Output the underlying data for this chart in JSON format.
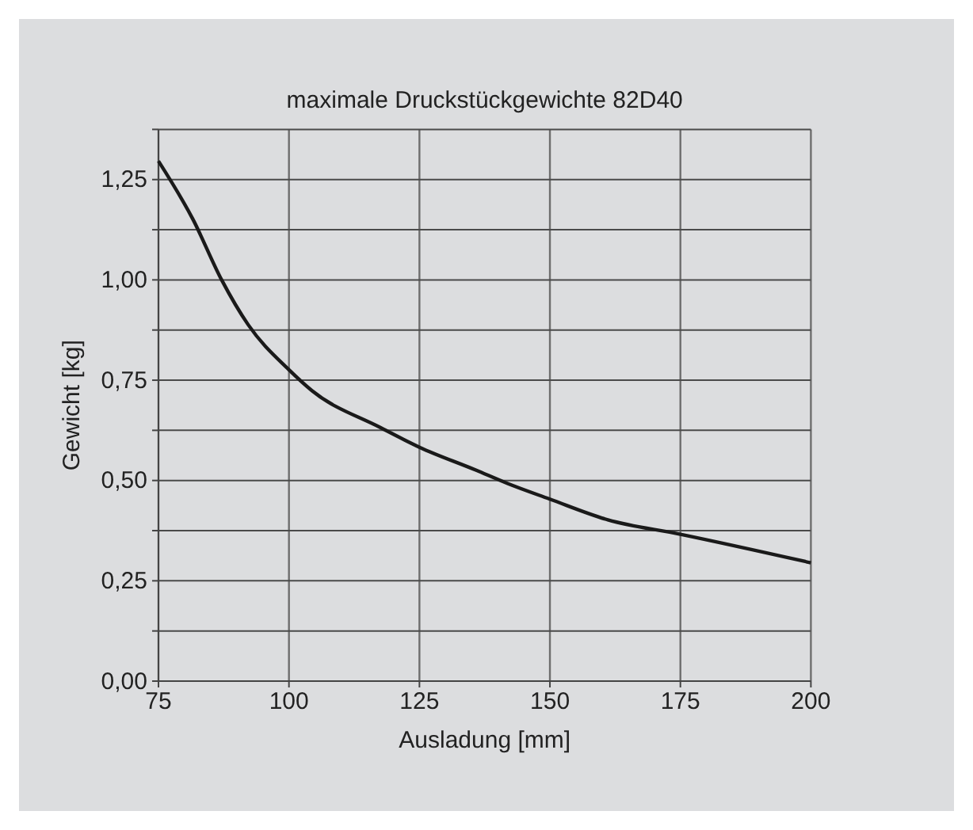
{
  "chart_data": {
    "type": "line",
    "title": "maximale Druckstückgewichte 82D40",
    "xlabel": "Ausladung [mm]",
    "ylabel": "Gewicht [kg]",
    "x": [
      75,
      81.6,
      87.1,
      92.2,
      100,
      104.4,
      117.5,
      125,
      135.8,
      141.8,
      149.9,
      161.1,
      175,
      200
    ],
    "series": [
      {
        "color": "#1a1a1a",
        "values": [
          1.296,
          1.151,
          1.0,
          0.888,
          0.776,
          0.724,
          0.632,
          0.583,
          0.526,
          0.493,
          0.454,
          0.402,
          0.366,
          0.295
        ]
      }
    ],
    "xlim": [
      75,
      200
    ],
    "xticks": [
      75,
      100,
      125,
      150,
      175,
      200
    ],
    "ylim": [
      0,
      1.375
    ],
    "yticks": [
      {
        "value": 0,
        "label": "0,00"
      },
      {
        "value": 0.125,
        "label": null
      },
      {
        "value": 0.25,
        "label": "0,25"
      },
      {
        "value": 0.375,
        "label": null
      },
      {
        "value": 0.5,
        "label": "0,50"
      },
      {
        "value": 0.625,
        "label": null
      },
      {
        "value": 0.75,
        "label": "0,75"
      },
      {
        "value": 0.875,
        "label": null
      },
      {
        "value": 1,
        "label": "1,00"
      },
      {
        "value": 1.125,
        "label": null
      },
      {
        "value": 1.25,
        "label": "1,25"
      },
      {
        "value": 1.375,
        "label": null
      }
    ],
    "grid": true,
    "marker": "none",
    "line_style": "solid"
  }
}
